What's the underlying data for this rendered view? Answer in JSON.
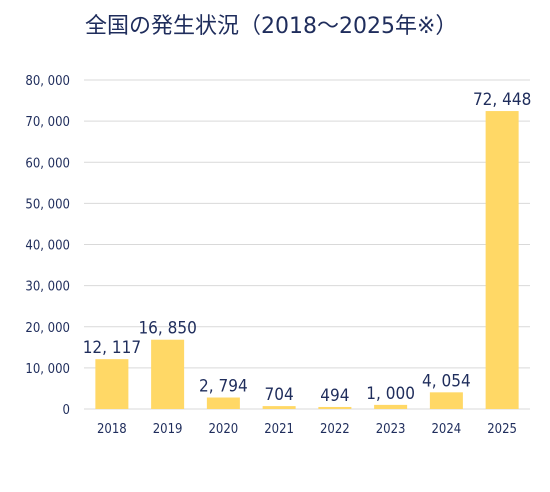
{
  "title": "全国の発生状況（2018〜2025年※）",
  "colors": {
    "bar": "#ffd866",
    "grid": "#d9d9d9",
    "text": "#1f2d5c"
  },
  "chart_data": {
    "type": "bar",
    "title": "全国の発生状況（2018〜2025年※）",
    "xlabel": "",
    "ylabel": "",
    "categories": [
      "2018",
      "2019",
      "2020",
      "2021",
      "2022",
      "2023",
      "2024",
      "2025"
    ],
    "values": [
      12117,
      16850,
      2794,
      704,
      494,
      1000,
      4054,
      72448
    ],
    "value_labels": [
      "12, 117",
      "16, 850",
      "2, 794",
      "704",
      "494",
      "1, 000",
      "4, 054",
      "72, 448"
    ],
    "ylim": [
      0,
      80000
    ],
    "yticks": [
      0,
      10000,
      20000,
      30000,
      40000,
      50000,
      60000,
      70000,
      80000
    ],
    "ytick_labels": [
      "0",
      "10, 000",
      "20, 000",
      "30, 000",
      "40, 000",
      "50, 000",
      "60, 000",
      "70, 000",
      "80, 000"
    ],
    "grid": true,
    "legend": "none"
  }
}
